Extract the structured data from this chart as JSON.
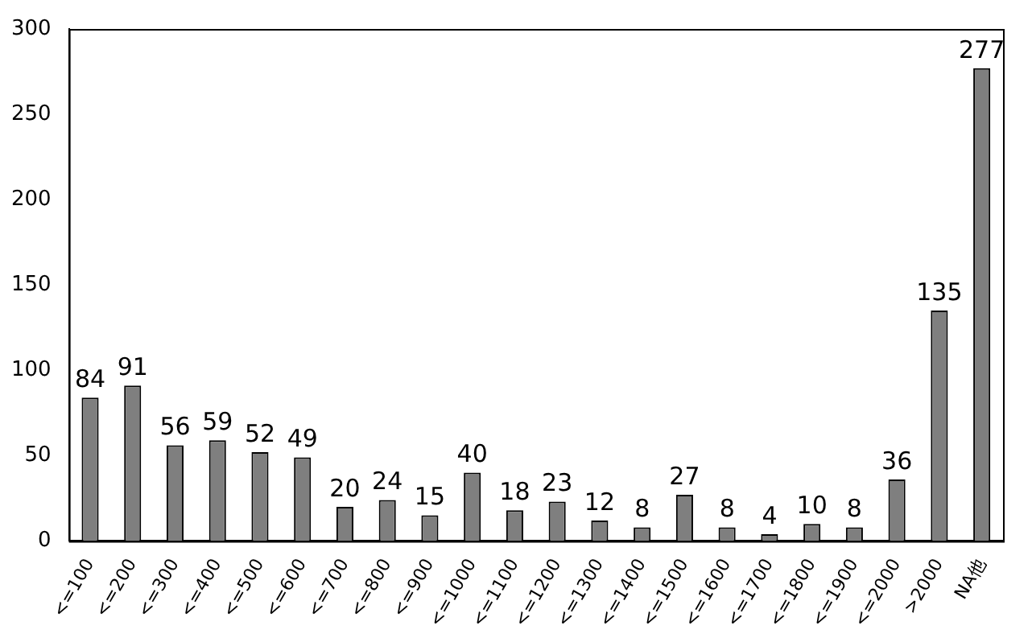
{
  "chart_data": {
    "type": "bar",
    "categories": [
      "<=100",
      "<=200",
      "<=300",
      "<=400",
      "<=500",
      "<=600",
      "<=700",
      "<=800",
      "<=900",
      "<=1000",
      "<=1100",
      "<=1200",
      "<=1300",
      "<=1400",
      "<=1500",
      "<=1600",
      "<=1700",
      "<=1800",
      "<=1900",
      "<=2000",
      ">2000",
      "NA他"
    ],
    "values": [
      84,
      91,
      56,
      59,
      52,
      49,
      20,
      24,
      15,
      40,
      18,
      23,
      12,
      8,
      27,
      8,
      4,
      10,
      8,
      36,
      135,
      277
    ],
    "color": "#7f7f7f",
    "ylim": [
      0,
      300
    ],
    "yticks": [
      0,
      50,
      100,
      150,
      200,
      250,
      300
    ],
    "grid": false,
    "legend": false,
    "data_labels": true
  }
}
